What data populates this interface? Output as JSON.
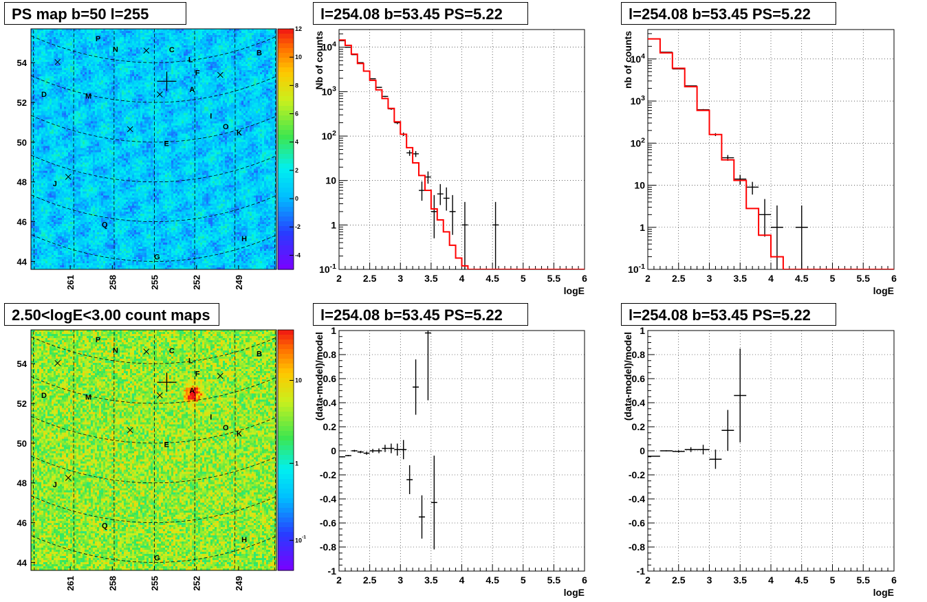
{
  "panel_titles": {
    "map_ps": "PS map b=50 l=255",
    "map_counts": "2.50<logE<3.00 count maps",
    "spec_a": "l=254.08 b=53.45 PS=5.22",
    "spec_b": "l=254.08 b=53.45 PS=5.22",
    "res_a": "l=254.08 b=53.45 PS=5.22",
    "res_b": "l=254.08 b=53.45 PS=5.22"
  },
  "maps": {
    "lat_ticks": [
      "44",
      "46",
      "48",
      "50",
      "52",
      "54"
    ],
    "lon_ticks": [
      "261",
      "258",
      "255",
      "252",
      "249"
    ],
    "source_labels": [
      {
        "label": "P",
        "lon": 259.2,
        "lat": 54.8
      },
      {
        "label": "N",
        "lon": 257.9,
        "lat": 54.4
      },
      {
        "label": "C",
        "lon": 253.7,
        "lat": 54.5
      },
      {
        "label": "L",
        "lon": 252.3,
        "lat": 53.9
      },
      {
        "label": "F",
        "lon": 251.8,
        "lat": 53.2
      },
      {
        "label": "B",
        "lon": 247.2,
        "lat": 53.4
      },
      {
        "label": "A",
        "lon": 252.2,
        "lat": 52.4
      },
      {
        "label": "M",
        "lon": 259.9,
        "lat": 51.8
      },
      {
        "label": "D",
        "lon": 263.2,
        "lat": 51.2
      },
      {
        "label": "I",
        "lon": 250.8,
        "lat": 50.9
      },
      {
        "label": "O",
        "lon": 249.7,
        "lat": 50.2
      },
      {
        "label": "E",
        "lon": 254.1,
        "lat": 49.8
      },
      {
        "label": "K",
        "lon": 248.7,
        "lat": 49.7
      },
      {
        "label": "J",
        "lon": 262.4,
        "lat": 46.9
      },
      {
        "label": "Q",
        "lon": 258.7,
        "lat": 45.5
      },
      {
        "label": "H",
        "lon": 248.3,
        "lat": 44.3
      },
      {
        "label": "G",
        "lon": 254.8,
        "lat": 44.1
      }
    ],
    "x_markers": [
      {
        "lon": 255.6,
        "lat": 54.6
      },
      {
        "lon": 262.2,
        "lat": 53.2
      },
      {
        "lon": 250.1,
        "lat": 53.0
      },
      {
        "lon": 254.6,
        "lat": 52.4
      },
      {
        "lon": 256.8,
        "lat": 50.6
      },
      {
        "lon": 261.4,
        "lat": 47.6
      }
    ],
    "cross_marker": {
      "lon": 254.08,
      "lat": 53.05
    },
    "ps_colorbar": {
      "min": -5,
      "max": 12,
      "ticks": [
        "12",
        "10",
        "8",
        "6",
        "4",
        "2",
        "0",
        "-2",
        "-4"
      ]
    },
    "count_colorbar": {
      "ticks": [
        "10",
        "1",
        "10-1"
      ]
    }
  },
  "chart_data": [
    {
      "type": "line",
      "title": "l=254.08 b=53.45 PS=5.22",
      "xlabel": "logE",
      "ylabel": "Nb of counts",
      "xlim": [
        2,
        6
      ],
      "ylim": [
        0.1,
        25000
      ],
      "yscale": "log",
      "grid": true,
      "x_ticks": [
        "2",
        "2.5",
        "3",
        "3.5",
        "4",
        "4.5",
        "5",
        "5.5",
        "6"
      ],
      "y_ticks": [
        {
          "v": 0.1,
          "t": "10-1"
        },
        {
          "v": 1,
          "t": "1"
        },
        {
          "v": 10,
          "t": "10"
        },
        {
          "v": 100,
          "t": "102"
        },
        {
          "v": 1000,
          "t": "103"
        },
        {
          "v": 10000,
          "t": "104"
        }
      ],
      "series": [
        {
          "style": "errorbar",
          "color": "#000000",
          "x": [
            2.05,
            2.15,
            2.25,
            2.35,
            2.45,
            2.55,
            2.65,
            2.75,
            2.85,
            2.95,
            3.05,
            3.15,
            3.25,
            3.35,
            3.45,
            3.55,
            3.65,
            3.75,
            3.85,
            4.05,
            4.55
          ],
          "y": [
            14000,
            10000,
            6800,
            4500,
            2900,
            1950,
            1250,
            780,
            410,
            200,
            110,
            42,
            40,
            6,
            12,
            2,
            5,
            4,
            2,
            1,
            1
          ],
          "ylo": [
            13880,
            9900,
            6720,
            4430,
            2850,
            1910,
            1220,
            755,
            390,
            186,
            100,
            36,
            34,
            3.5,
            8.5,
            0.5,
            2.8,
            2.1,
            0.6,
            0.1,
            0.1
          ],
          "yhi": [
            14120,
            10100,
            6880,
            4570,
            2950,
            1990,
            1280,
            805,
            430,
            214,
            120,
            48,
            46,
            9.5,
            16,
            4.7,
            8.3,
            7,
            4.7,
            3.3,
            3.3
          ]
        },
        {
          "style": "step",
          "color": "#ff0000",
          "edges": [
            2,
            2.1,
            2.2,
            2.3,
            2.4,
            2.5,
            2.6,
            2.7,
            2.8,
            2.9,
            3,
            3.1,
            3.2,
            3.3,
            3.4,
            3.5,
            3.6,
            3.7,
            3.8,
            3.9,
            4,
            4.1,
            6
          ],
          "values": [
            14500,
            11000,
            7000,
            4300,
            2900,
            1800,
            1100,
            700,
            420,
            210,
            110,
            55,
            25,
            13,
            6,
            2.3,
            1.3,
            0.7,
            0.35,
            0.18,
            0.12,
            0.1
          ]
        }
      ]
    },
    {
      "type": "line",
      "title": "l=254.08 b=53.45 PS=5.22",
      "xlabel": "logE",
      "ylabel": "nb of counts",
      "xlim": [
        2,
        6
      ],
      "ylim": [
        0.1,
        50000
      ],
      "yscale": "log",
      "grid": true,
      "x_ticks": [
        "2",
        "2.5",
        "3",
        "3.5",
        "4",
        "4.5",
        "5",
        "5.5",
        "6"
      ],
      "y_ticks": [
        {
          "v": 0.1,
          "t": "10-1"
        },
        {
          "v": 1,
          "t": "1"
        },
        {
          "v": 10,
          "t": "10"
        },
        {
          "v": 100,
          "t": "102"
        },
        {
          "v": 1000,
          "t": "103"
        },
        {
          "v": 10000,
          "t": "104"
        }
      ],
      "series": [
        {
          "style": "errorbar",
          "color": "#000000",
          "x": [
            2.1,
            2.3,
            2.5,
            2.7,
            2.9,
            3.1,
            3.3,
            3.5,
            3.7,
            3.9,
            4.1,
            4.5
          ],
          "y": [
            30000,
            14500,
            5800,
            2300,
            620,
            160,
            45,
            14,
            9,
            2,
            1,
            1
          ],
          "ylo": [
            29800,
            14380,
            5720,
            2250,
            595,
            147,
            38,
            10.3,
            6,
            0.6,
            0.1,
            0.1
          ],
          "yhi": [
            30200,
            14620,
            5880,
            2350,
            645,
            173,
            52,
            17.7,
            12,
            4.7,
            3.3,
            3.3
          ]
        },
        {
          "style": "step",
          "color": "#ff0000",
          "edges": [
            2,
            2.2,
            2.4,
            2.6,
            2.8,
            3,
            3.2,
            3.4,
            3.6,
            3.8,
            4,
            4.2,
            6
          ],
          "values": [
            30000,
            14000,
            6000,
            2200,
            600,
            160,
            40,
            13,
            2.8,
            0.65,
            0.2,
            0.1
          ]
        }
      ]
    },
    {
      "type": "scatter",
      "title": "l=254.08 b=53.45 PS=5.22",
      "xlabel": "logE",
      "ylabel": "(data-model)/model",
      "xlim": [
        2,
        6
      ],
      "ylim": [
        -1,
        1
      ],
      "grid": true,
      "x_ticks": [
        "2",
        "2.5",
        "3",
        "3.5",
        "4",
        "4.5",
        "5",
        "5.5",
        "6"
      ],
      "y_ticks": [
        "-1",
        "-0.8",
        "-0.6",
        "-0.4",
        "-0.2",
        "0",
        "0.2",
        "0.4",
        "0.6",
        "0.8",
        "1"
      ],
      "series": [
        {
          "style": "errorbar",
          "color": "#000000",
          "x": [
            2.05,
            2.15,
            2.25,
            2.35,
            2.45,
            2.55,
            2.65,
            2.75,
            2.85,
            2.95,
            3.05,
            3.15,
            3.25,
            3.35,
            3.45,
            3.55
          ],
          "y": [
            -0.05,
            -0.04,
            0,
            -0.01,
            -0.02,
            0,
            0,
            0.02,
            0.02,
            0.01,
            0.01,
            -0.24,
            0.53,
            -0.55,
            0.98,
            -0.43
          ],
          "yerr": [
            0.005,
            0.006,
            0.008,
            0.01,
            0.013,
            0.016,
            0.02,
            0.03,
            0.04,
            0.05,
            0.08,
            0.12,
            0.23,
            0.18,
            0.56,
            0.39
          ]
        }
      ]
    },
    {
      "type": "scatter",
      "title": "l=254.08 b=53.45 PS=5.22",
      "xlabel": "logE",
      "ylabel": "(data-model)/model",
      "xlim": [
        2,
        6
      ],
      "ylim": [
        -1,
        1
      ],
      "grid": true,
      "x_ticks": [
        "2",
        "2.5",
        "3",
        "3.5",
        "4",
        "4.5",
        "5",
        "5.5",
        "6"
      ],
      "y_ticks": [
        "-1",
        "-0.8",
        "-0.6",
        "-0.4",
        "-0.2",
        "0",
        "0.2",
        "0.4",
        "0.6",
        "0.8",
        "1"
      ],
      "series": [
        {
          "style": "errorbar",
          "color": "#000000",
          "x": [
            2.1,
            2.3,
            2.5,
            2.7,
            2.9,
            3.1,
            3.3,
            3.5
          ],
          "y": [
            -0.045,
            0,
            -0.005,
            0.01,
            0.01,
            -0.07,
            0.17,
            0.46
          ],
          "yerr": [
            0.004,
            0.005,
            0.01,
            0.02,
            0.04,
            0.08,
            0.17,
            0.39
          ]
        }
      ]
    }
  ]
}
